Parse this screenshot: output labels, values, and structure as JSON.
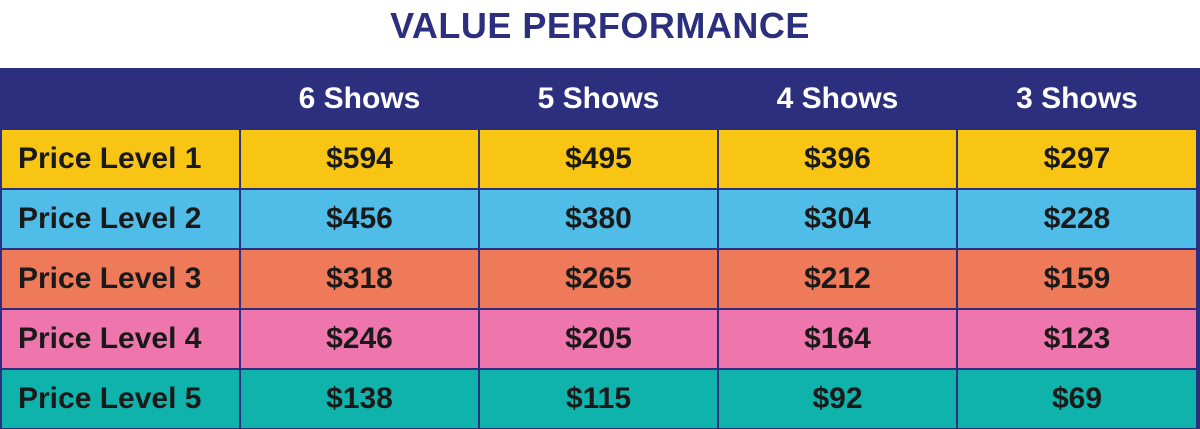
{
  "title": "VALUE PERFORMANCE",
  "colors": {
    "title": "#2c2f7d",
    "header_bg": "#2c2f7d",
    "header_text": "#ffffff",
    "price_level_1": "#f9c515",
    "price_level_2": "#4fbde8",
    "price_level_3": "#ee7a59",
    "price_level_4": "#ef76ad",
    "price_level_5": "#10b3ab"
  },
  "table": {
    "header": [
      "",
      "6 Shows",
      "5 Shows",
      "4 Shows",
      "3 Shows"
    ],
    "rows": [
      {
        "label": "Price Level 1",
        "values": [
          "$594",
          "$495",
          "$396",
          "$297"
        ]
      },
      {
        "label": "Price Level 2",
        "values": [
          "$456",
          "$380",
          "$304",
          "$228"
        ]
      },
      {
        "label": "Price Level 3",
        "values": [
          "$318",
          "$265",
          "$212",
          "$159"
        ]
      },
      {
        "label": "Price Level 4",
        "values": [
          "$246",
          "$205",
          "$164",
          "$123"
        ]
      },
      {
        "label": "Price Level 5",
        "values": [
          "$138",
          "$115",
          "$92",
          "$69"
        ]
      }
    ]
  }
}
